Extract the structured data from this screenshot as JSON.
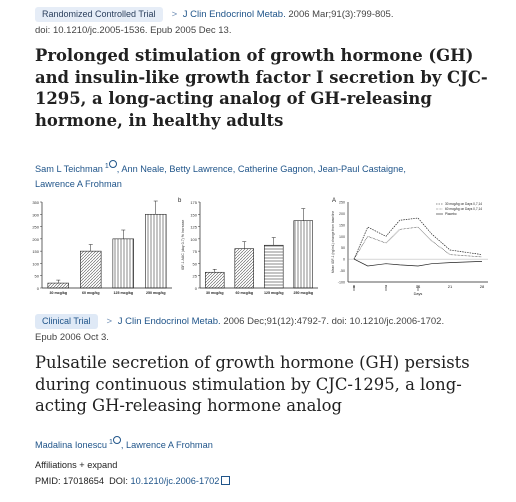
{
  "article1": {
    "badge": "Randomized Controlled Trial",
    "journal": "J Clin Endocrinol Metab.",
    "citation": "2006 Mar;91(3):799-805.",
    "doi_line": "doi: 10.1210/jc.2005-1536. Epub 2005 Dec 13.",
    "title": "Prolonged stimulation of growth hormone (GH) and insulin-like growth factor I secretion by CJC-1295, a long-acting analog of GH-releasing hormone, in healthy adults",
    "authors_line1": [
      "Sam L Teichman",
      "Ann Neale",
      "Betty Lawrence",
      "Catherine Gagnon",
      "Jean-Paul Castaigne,"
    ],
    "authors_line2": "Lawrence A Frohman",
    "affil_marker": "1"
  },
  "figures": {
    "left": {
      "yticks": [
        "350",
        "300",
        "250",
        "200",
        "150",
        "100",
        "50",
        "0"
      ],
      "categories": [
        "30 mcg/kg",
        "60 mcg/kg",
        "125 mcg/kg",
        "250 mcg/kg"
      ],
      "values": [
        20,
        150,
        200,
        300
      ],
      "ymax": 350
    },
    "mid": {
      "panel": "b",
      "ylabel": "IGF-1 AUC (day 0-7) % Increase",
      "yticks": [
        "175",
        "150",
        "125",
        "100",
        "75",
        "50",
        "25",
        "0"
      ],
      "categories": [
        "30 mcg/kg",
        "60 mcg/kg",
        "125 mcg/kg",
        "250 mcg/kg"
      ],
      "values": [
        32,
        80,
        87,
        137
      ],
      "ymax": 175
    },
    "right": {
      "panel": "A",
      "ylabel": "Mean IGF-1 (ng/mL) change from baseline",
      "xlabel": "Days",
      "yticks": [
        "250",
        "200",
        "150",
        "100",
        "50",
        "0",
        "-50",
        "-100"
      ],
      "xticks": [
        "0",
        "7",
        "14",
        "21",
        "28"
      ],
      "legend": [
        "30 mcg/kg on Days 0,7,14",
        "60 mcg/kg on Days 0,7,14",
        "Placebo"
      ]
    }
  },
  "article2": {
    "badge": "Clinical Trial",
    "journal": "J Clin Endocrinol Metab.",
    "citation": "2006 Dec;91(12):4792-7. doi: 10.1210/jc.2006-1702.",
    "epub": "Epub 2006 Oct 3.",
    "title": "Pulsatile secretion of growth hormone (GH) persists during continuous stimulation by CJC-1295, a long-acting GH-releasing hormone analog",
    "authors": [
      "Madalina Ionescu",
      "Lawrence A Frohman"
    ],
    "affil_marker": "1",
    "affiliations_label": "Affiliations",
    "expand_label": "expand",
    "pmid": "PMID: 17018654",
    "doi_label": "DOI:",
    "doi_value": "10.1210/jc.2006-1702"
  },
  "colors": {
    "link": "#20558a",
    "badge_bg": "#e6edf7"
  }
}
